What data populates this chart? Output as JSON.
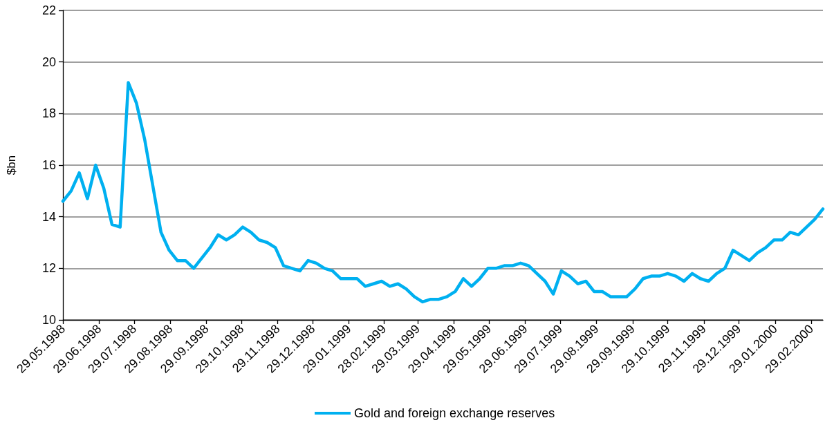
{
  "chart_data": {
    "type": "line",
    "ylabel": "$bn",
    "x": [
      "1998-05-29",
      "1998-06-05",
      "1998-06-12",
      "1998-06-19",
      "1998-06-26",
      "1998-07-03",
      "1998-07-10",
      "1998-07-17",
      "1998-07-24",
      "1998-07-31",
      "1998-08-07",
      "1998-08-14",
      "1998-08-21",
      "1998-08-28",
      "1998-09-04",
      "1998-09-11",
      "1998-09-18",
      "1998-09-25",
      "1998-10-02",
      "1998-10-09",
      "1998-10-16",
      "1998-10-23",
      "1998-10-30",
      "1998-11-06",
      "1998-11-13",
      "1998-11-20",
      "1998-11-27",
      "1998-12-04",
      "1998-12-11",
      "1998-12-18",
      "1998-12-25",
      "1999-01-01",
      "1999-01-08",
      "1999-01-15",
      "1999-01-22",
      "1999-01-29",
      "1999-02-05",
      "1999-02-12",
      "1999-02-19",
      "1999-02-26",
      "1999-03-05",
      "1999-03-12",
      "1999-03-19",
      "1999-03-26",
      "1999-04-02",
      "1999-04-09",
      "1999-04-16",
      "1999-04-23",
      "1999-04-30",
      "1999-05-07",
      "1999-05-14",
      "1999-05-21",
      "1999-05-28",
      "1999-06-04",
      "1999-06-11",
      "1999-06-18",
      "1999-06-25",
      "1999-07-02",
      "1999-07-09",
      "1999-07-16",
      "1999-07-23",
      "1999-07-30",
      "1999-08-06",
      "1999-08-13",
      "1999-08-20",
      "1999-08-27",
      "1999-09-03",
      "1999-09-10",
      "1999-09-17",
      "1999-09-24",
      "1999-10-01",
      "1999-10-08",
      "1999-10-15",
      "1999-10-22",
      "1999-10-29",
      "1999-11-05",
      "1999-11-12",
      "1999-11-19",
      "1999-11-26",
      "1999-12-03",
      "1999-12-10",
      "1999-12-17",
      "1999-12-24",
      "1999-12-31",
      "2000-01-07",
      "2000-01-14",
      "2000-01-21",
      "2000-01-28",
      "2000-02-04",
      "2000-02-11",
      "2000-02-18",
      "2000-02-25",
      "2000-03-03",
      "2000-03-10"
    ],
    "series": [
      {
        "name": "Gold and foreign exchange reserves",
        "color": "#00b0f0",
        "values": [
          14.6,
          15.0,
          15.7,
          14.7,
          16.0,
          15.1,
          13.7,
          13.6,
          19.2,
          18.4,
          17.0,
          15.2,
          13.4,
          12.7,
          12.3,
          12.3,
          12.0,
          12.4,
          12.8,
          13.3,
          13.1,
          13.3,
          13.6,
          13.4,
          13.1,
          13.0,
          12.8,
          12.1,
          12.0,
          11.9,
          12.3,
          12.2,
          12.0,
          11.9,
          11.6,
          11.6,
          11.6,
          11.3,
          11.4,
          11.5,
          11.3,
          11.4,
          11.2,
          10.9,
          10.7,
          10.8,
          10.8,
          10.9,
          11.1,
          11.6,
          11.3,
          11.6,
          12.0,
          12.0,
          12.1,
          12.1,
          12.2,
          12.1,
          11.8,
          11.5,
          11.0,
          11.9,
          11.7,
          11.4,
          11.5,
          11.1,
          11.1,
          10.9,
          10.9,
          10.9,
          11.2,
          11.6,
          11.7,
          11.7,
          11.8,
          11.7,
          11.5,
          11.8,
          11.6,
          11.5,
          11.8,
          12.0,
          12.7,
          12.5,
          12.3,
          12.6,
          12.8,
          13.1,
          13.1,
          13.4,
          13.3,
          13.6,
          13.9,
          14.3
        ]
      }
    ],
    "xlim": [
      "1998-05-29",
      "2000-03-10"
    ],
    "xticks": [
      {
        "value": "1998-05-29",
        "label": "29.05.1998"
      },
      {
        "value": "1998-06-29",
        "label": "29.06.1998"
      },
      {
        "value": "1998-07-29",
        "label": "29.07.1998"
      },
      {
        "value": "1998-08-29",
        "label": "29.08.1998"
      },
      {
        "value": "1998-09-29",
        "label": "29.09.1998"
      },
      {
        "value": "1998-10-29",
        "label": "29.10.1998"
      },
      {
        "value": "1998-11-29",
        "label": "29.11.1998"
      },
      {
        "value": "1998-12-29",
        "label": "29.12.1998"
      },
      {
        "value": "1999-01-29",
        "label": "29.01.1999"
      },
      {
        "value": "1999-02-28",
        "label": "28.02.1999"
      },
      {
        "value": "1999-03-29",
        "label": "29.03.1999"
      },
      {
        "value": "1999-04-29",
        "label": "29.04.1999"
      },
      {
        "value": "1999-05-29",
        "label": "29.05.1999"
      },
      {
        "value": "1999-06-29",
        "label": "29.06.1999"
      },
      {
        "value": "1999-07-29",
        "label": "29.07.1999"
      },
      {
        "value": "1999-08-29",
        "label": "29.08.1999"
      },
      {
        "value": "1999-09-29",
        "label": "29.09.1999"
      },
      {
        "value": "1999-10-29",
        "label": "29.10.1999"
      },
      {
        "value": "1999-11-29",
        "label": "29.11.1999"
      },
      {
        "value": "1999-12-29",
        "label": "29.12.1999"
      },
      {
        "value": "2000-01-29",
        "label": "29.01.2000"
      },
      {
        "value": "2000-02-29",
        "label": "29.02.2000"
      }
    ],
    "ylim": [
      10,
      22
    ],
    "yticks": [
      10,
      12,
      14,
      16,
      18,
      20,
      22
    ],
    "grid": "y",
    "legend": "bottom",
    "marker": "none",
    "line_style": "solid"
  }
}
